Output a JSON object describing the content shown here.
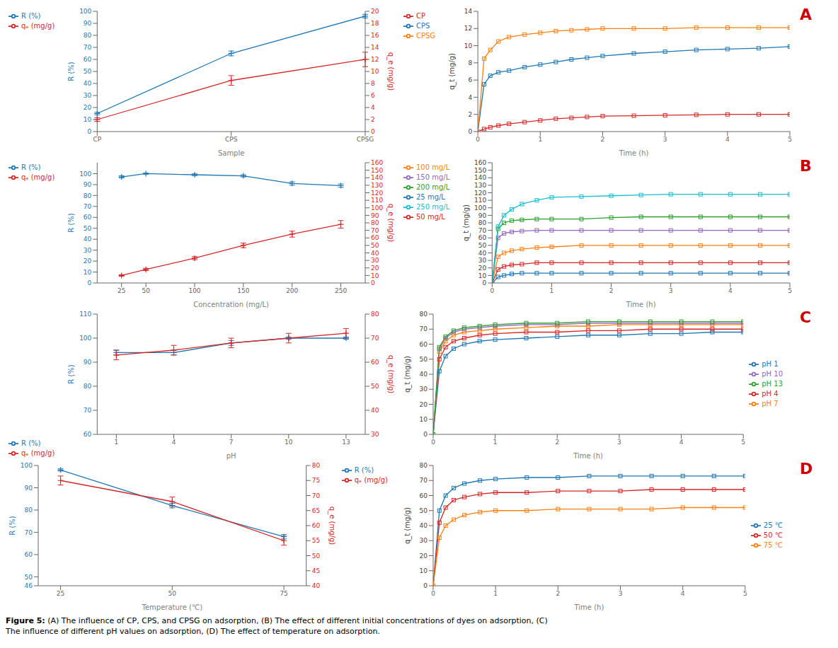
{
  "chart_data": [
    {
      "type": "line",
      "categories": [
        "CP",
        "CPS",
        "CPSG"
      ],
      "xlabel": "Sample",
      "ylabel": "R (%)",
      "y2label": "q_e (mg/g)",
      "ylim": [
        0,
        100
      ],
      "yticks": [
        0,
        10,
        20,
        30,
        40,
        50,
        60,
        70,
        80,
        90,
        100
      ],
      "y2lim": [
        0,
        20
      ],
      "y2ticks": [
        0,
        2,
        4,
        6,
        8,
        10,
        12,
        14,
        16,
        18,
        20
      ],
      "legend": "upper left",
      "grid": false,
      "series": [
        {
          "name": "R (%)",
          "color": "#1f77b4",
          "marker": "plus",
          "values": [
            15,
            65,
            96
          ],
          "errors": [
            1,
            2,
            1.5
          ]
        },
        {
          "name": "qₑ (mg/g)",
          "color": "#d62728",
          "marker": "plus",
          "axis": "y2",
          "values": [
            2,
            8.5,
            12
          ],
          "errors": [
            0.3,
            0.8,
            1.2
          ]
        }
      ]
    },
    {
      "type": "line",
      "x": [
        0,
        0.1,
        0.2,
        0.33,
        0.5,
        0.75,
        1.0,
        1.25,
        1.5,
        1.75,
        2.0,
        2.5,
        3.0,
        3.5,
        4.0,
        4.5,
        5.0
      ],
      "xlabel": "Time (h)",
      "ylabel": "q_t (mg/g)",
      "xlim": [
        0,
        5
      ],
      "xticks": [
        0,
        1,
        2,
        3,
        4,
        5
      ],
      "ylim": [
        0,
        14
      ],
      "yticks": [
        0,
        2,
        4,
        6,
        8,
        10,
        12,
        14
      ],
      "legend": "upper left",
      "grid": false,
      "annotations": [
        {
          "text": "A",
          "color": "#cc0000"
        }
      ],
      "series": [
        {
          "name": "CPS",
          "color": "#1f77b4",
          "marker": "square",
          "values": [
            0,
            5.5,
            6.5,
            6.9,
            7.1,
            7.5,
            7.8,
            8.1,
            8.4,
            8.6,
            8.8,
            9.1,
            9.3,
            9.5,
            9.6,
            9.7,
            9.9
          ]
        },
        {
          "name": "CP",
          "color": "#d62728",
          "marker": "square",
          "values": [
            0,
            0.3,
            0.5,
            0.7,
            0.9,
            1.1,
            1.3,
            1.5,
            1.6,
            1.7,
            1.8,
            1.85,
            1.9,
            1.95,
            2.0,
            2.0,
            2.0
          ]
        },
        {
          "name": "CPSG",
          "color": "#ff7f0e",
          "marker": "square",
          "values": [
            0,
            8.5,
            9.5,
            10.5,
            11.0,
            11.3,
            11.5,
            11.7,
            11.8,
            11.9,
            12.0,
            12.0,
            12.0,
            12.1,
            12.1,
            12.1,
            12.1
          ]
        }
      ]
    },
    {
      "type": "line",
      "x": [
        25,
        50,
        100,
        150,
        200,
        250
      ],
      "xlabel": "Concentration (mg/L)",
      "ylabel": "R (%)",
      "y2label": "q_e (mg/g)",
      "xlim": [
        0,
        275
      ],
      "xticks": [
        25,
        50,
        100,
        150,
        200,
        250
      ],
      "ylim": [
        0,
        110
      ],
      "yticks": [
        0,
        10,
        20,
        30,
        40,
        50,
        60,
        70,
        80,
        90,
        100
      ],
      "y2lim": [
        0,
        160
      ],
      "y2ticks": [
        0,
        10,
        20,
        30,
        40,
        50,
        60,
        70,
        80,
        90,
        100,
        110,
        120,
        130,
        140,
        150,
        160
      ],
      "legend": "upper left",
      "grid": false,
      "series": [
        {
          "name": "R (%)",
          "color": "#1f77b4",
          "marker": "plus",
          "values": [
            97,
            100,
            99,
            98,
            91,
            89
          ],
          "errors": [
            1,
            0.5,
            0.8,
            1,
            1.5,
            1.5
          ]
        },
        {
          "name": "qₑ (mg/g)",
          "color": "#d62728",
          "marker": "plus",
          "axis": "y2",
          "values": [
            10,
            18,
            33,
            50,
            65,
            78
          ],
          "errors": [
            1,
            1.5,
            2,
            3,
            4,
            5
          ]
        }
      ]
    },
    {
      "type": "line",
      "x": [
        0,
        0.1,
        0.2,
        0.33,
        0.5,
        0.75,
        1.0,
        1.5,
        2.0,
        2.5,
        3.0,
        3.5,
        4.0,
        4.5,
        5.0
      ],
      "xlabel": "Time (h)",
      "ylabel": "q_t (mg/g)",
      "xlim": [
        0,
        5
      ],
      "xticks": [
        0,
        1,
        2,
        3,
        4,
        5
      ],
      "ylim": [
        0,
        160
      ],
      "yticks": [
        0,
        10,
        20,
        30,
        40,
        50,
        60,
        70,
        80,
        90,
        100,
        110,
        120,
        130,
        140,
        150,
        160
      ],
      "legend": "upper left",
      "grid": false,
      "annotations": [
        {
          "text": "B",
          "color": "#cc0000"
        }
      ],
      "series": [
        {
          "name": "25 mg/L",
          "color": "#1f77b4",
          "marker": "square",
          "values": [
            0,
            8,
            10,
            12,
            13,
            13,
            13,
            13,
            13,
            13,
            13,
            13,
            13,
            13,
            13
          ]
        },
        {
          "name": "50 mg/L",
          "color": "#d62728",
          "marker": "square",
          "values": [
            0,
            18,
            22,
            24,
            25,
            27,
            27,
            27,
            27,
            27,
            27,
            27,
            27,
            27,
            27
          ]
        },
        {
          "name": "100 mg/L",
          "color": "#ff7f0e",
          "marker": "square",
          "values": [
            0,
            35,
            40,
            43,
            45,
            47,
            48,
            50,
            50,
            50,
            50,
            50,
            50,
            50,
            50
          ]
        },
        {
          "name": "150 mg/L",
          "color": "#9467bd",
          "marker": "square",
          "values": [
            0,
            60,
            66,
            68,
            69,
            70,
            70,
            70,
            70,
            70,
            70,
            70,
            70,
            70,
            70
          ]
        },
        {
          "name": "200 mg/L",
          "color": "#2ca02c",
          "marker": "square",
          "values": [
            0,
            72,
            80,
            83,
            84,
            85,
            85,
            85,
            87,
            88,
            88,
            88,
            88,
            88,
            88
          ]
        },
        {
          "name": "250 mg/L",
          "color": "#17becf",
          "marker": "square",
          "values": [
            0,
            75,
            90,
            98,
            105,
            110,
            114,
            115,
            116,
            117,
            118,
            118,
            118,
            118,
            118
          ]
        }
      ]
    },
    {
      "type": "line",
      "x": [
        1,
        4,
        7,
        10,
        13
      ],
      "xlabel": "pH",
      "ylabel": "R (%)",
      "y2label": "q_e (mg/g)",
      "xlim": [
        0,
        14
      ],
      "xticks": [
        1,
        4,
        7,
        10,
        13
      ],
      "ylim": [
        60,
        110
      ],
      "yticks": [
        60,
        70,
        80,
        90,
        100,
        110
      ],
      "y2lim": [
        30,
        80
      ],
      "y2ticks": [
        30,
        40,
        50,
        60,
        70,
        80
      ],
      "legend": "lower left",
      "grid": false,
      "series": [
        {
          "name": "R (%)",
          "color": "#1f77b4",
          "marker": "plus",
          "values": [
            94,
            94,
            98,
            100,
            100
          ],
          "errors": [
            1,
            1,
            1,
            0.5,
            0.5
          ]
        },
        {
          "name": "qₑ (mg/g)",
          "color": "#d62728",
          "marker": "plus",
          "axis": "y2",
          "values": [
            63,
            65,
            68,
            70,
            72
          ],
          "errors": [
            2,
            2,
            2,
            2,
            2
          ]
        }
      ]
    },
    {
      "type": "line",
      "x": [
        0,
        0.1,
        0.2,
        0.33,
        0.5,
        0.75,
        1.0,
        1.5,
        2.0,
        2.5,
        3.0,
        3.5,
        4.0,
        4.5,
        5.0
      ],
      "xlabel": "Time (h)",
      "ylabel": "q_t (mg/g)",
      "xlim": [
        0,
        5
      ],
      "xticks": [
        0,
        1,
        2,
        3,
        4,
        5
      ],
      "ylim": [
        0,
        80
      ],
      "yticks": [
        0,
        10,
        20,
        30,
        40,
        50,
        60,
        70,
        80
      ],
      "legend": "center right",
      "grid": false,
      "annotations": [
        {
          "text": "C",
          "color": "#cc0000"
        }
      ],
      "series": [
        {
          "name": "pH 1",
          "color": "#1f77b4",
          "marker": "square",
          "values": [
            0,
            42,
            52,
            57,
            60,
            62,
            63,
            64,
            65,
            66,
            66,
            67,
            67,
            68,
            68
          ]
        },
        {
          "name": "pH 4",
          "color": "#d62728",
          "marker": "square",
          "values": [
            0,
            50,
            58,
            62,
            64,
            66,
            67,
            68,
            68,
            69,
            69,
            70,
            70,
            70,
            70
          ]
        },
        {
          "name": "pH 7",
          "color": "#ff7f0e",
          "marker": "square",
          "values": [
            0,
            55,
            62,
            66,
            68,
            69,
            70,
            71,
            72,
            72,
            73,
            73,
            73,
            73,
            73
          ]
        },
        {
          "name": "pH 10",
          "color": "#9467bd",
          "marker": "square",
          "values": [
            0,
            57,
            64,
            68,
            70,
            71,
            72,
            73,
            73,
            74,
            74,
            74,
            74,
            74,
            74
          ]
        },
        {
          "name": "pH 13",
          "color": "#2ca02c",
          "marker": "square",
          "values": [
            0,
            58,
            65,
            69,
            71,
            72,
            73,
            74,
            74,
            75,
            75,
            75,
            75,
            75,
            75
          ]
        }
      ]
    },
    {
      "type": "line",
      "x": [
        25,
        50,
        75
      ],
      "xlabel": "Temperature (℃)",
      "ylabel": "R (%)",
      "y2label": "q_e (mg/g)",
      "xlim": [
        20,
        80
      ],
      "xticks": [
        25,
        50,
        75
      ],
      "ylim": [
        46,
        100
      ],
      "yticks": [
        46,
        50,
        60,
        70,
        80,
        90,
        100
      ],
      "y2lim": [
        40,
        80
      ],
      "y2ticks": [
        40,
        45,
        50,
        55,
        60,
        65,
        70,
        75,
        80
      ],
      "legend": "upper right",
      "grid": false,
      "series": [
        {
          "name": "R (%)",
          "color": "#1f77b4",
          "marker": "plus",
          "values": [
            98,
            82,
            68
          ],
          "errors": [
            0.5,
            1,
            1
          ]
        },
        {
          "name": "qₑ (mg/g)",
          "color": "#d62728",
          "marker": "plus",
          "axis": "y2",
          "values": [
            75,
            68,
            55
          ],
          "errors": [
            1.5,
            1.5,
            1.5
          ]
        }
      ]
    },
    {
      "type": "line",
      "x": [
        0,
        0.1,
        0.2,
        0.33,
        0.5,
        0.75,
        1.0,
        1.5,
        2.0,
        2.5,
        3.0,
        3.5,
        4.0,
        4.5,
        5.0
      ],
      "xlabel": "Time (h)",
      "ylabel": "q_t (mg/g)",
      "xlim": [
        0,
        5
      ],
      "xticks": [
        0,
        1,
        2,
        3,
        4,
        5
      ],
      "ylim": [
        0,
        80
      ],
      "yticks": [
        0,
        10,
        20,
        30,
        40,
        50,
        60,
        70,
        80
      ],
      "legend": "center right",
      "grid": false,
      "annotations": [
        {
          "text": "D",
          "color": "#cc0000"
        }
      ],
      "series": [
        {
          "name": "25 ℃",
          "color": "#1f77b4",
          "marker": "square",
          "values": [
            0,
            50,
            60,
            65,
            68,
            70,
            71,
            72,
            72,
            73,
            73,
            73,
            73,
            73,
            73
          ]
        },
        {
          "name": "50 ℃",
          "color": "#d62728",
          "marker": "square",
          "values": [
            0,
            42,
            52,
            57,
            59,
            61,
            62,
            62,
            63,
            63,
            63,
            64,
            64,
            64,
            64
          ]
        },
        {
          "name": "75 ℃",
          "color": "#ff7f0e",
          "marker": "square",
          "values": [
            0,
            32,
            40,
            44,
            47,
            49,
            50,
            50,
            51,
            51,
            51,
            51,
            52,
            52,
            52
          ]
        }
      ]
    }
  ],
  "caption": {
    "bold": "Figure 5:",
    "text": " (A) The influence of CP, CPS, and CPSG on adsorption, (B) The effect of different initial concentrations of dyes on adsorption, (C)\nThe influence of different pH values on adsorption, (D) The effect of temperature on adsorption."
  }
}
